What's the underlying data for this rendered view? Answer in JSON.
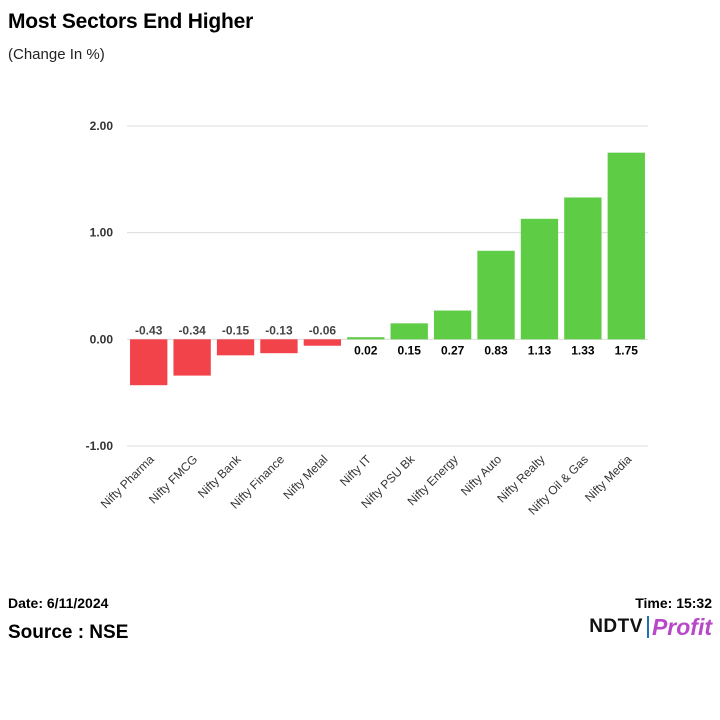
{
  "title": "Most Sectors End Higher",
  "subtitle": "(Change In %)",
  "footer": {
    "date": "Date: 6/11/2024",
    "time": "Time: 15:32",
    "source": "Source : NSE"
  },
  "logo": {
    "ndtv": "NDTV",
    "profit": "Profit",
    "profit_color": "#b847c9"
  },
  "colors": {
    "negative": "#f2424a",
    "positive": "#5fcc46",
    "grid": "#dcdcdc"
  },
  "chart_data": {
    "type": "bar",
    "title": "Most Sectors End Higher",
    "subtitle": "(Change In %)",
    "categories": [
      "Nifty Pharma",
      "Nifty FMCG",
      "Nifty Bank",
      "Nifty Finance",
      "Nifty Metal",
      "Nifty IT",
      "Nifty PSU Bk",
      "Nifty Energy",
      "Nifty Auto",
      "Nifty Realty",
      "Nifty Oil & Gas",
      "Nifty Media"
    ],
    "values": [
      -0.43,
      -0.34,
      -0.15,
      -0.13,
      -0.06,
      0.02,
      0.15,
      0.27,
      0.83,
      1.13,
      1.33,
      1.75
    ],
    "data_labels": [
      "-0.43",
      "-0.34",
      "-0.15",
      "-0.13",
      "-0.06",
      "0.02",
      "0.15",
      "0.27",
      "0.83",
      "1.13",
      "1.33",
      "1.75"
    ],
    "y_ticks": [
      2.0,
      1.0,
      0.0,
      -1.0
    ],
    "y_tick_labels": [
      "2.00",
      "1.00",
      "0.00",
      "-1.00"
    ],
    "ylim": [
      -1.0,
      2.0
    ],
    "grid": true,
    "legend": "none"
  }
}
